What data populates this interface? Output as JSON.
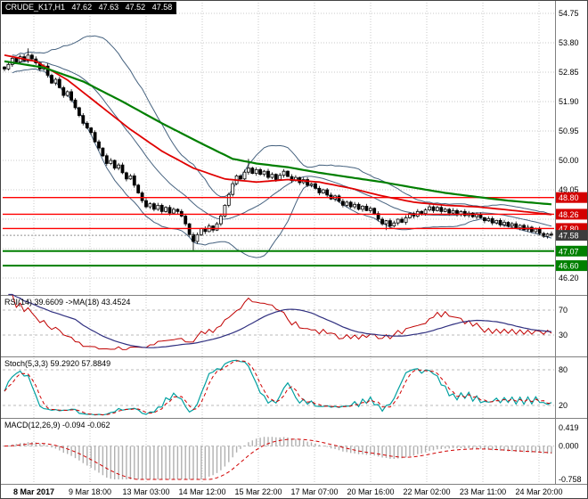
{
  "title_bar": {
    "symbol_timeframe": "CRUDE_K17,H1",
    "open": "47.62",
    "high": "47.63",
    "low": "47.52",
    "close": "47.58"
  },
  "chart_data": {
    "type": "candlestick",
    "symbol": "CRUDE_K17",
    "timeframe": "H1",
    "grid_color": "#c8c8c8",
    "x_labels": [
      "8 Mar 2017",
      "9 Mar 18:00",
      "13 Mar 03:00",
      "14 Mar 12:00",
      "15 Mar 22:00",
      "17 Mar 07:00",
      "20 Mar 16:00",
      "22 Mar 02:00",
      "23 Mar 11:00",
      "24 Mar 20:00"
    ],
    "price_axis": {
      "grid_prices": [
        54.75,
        53.8,
        52.85,
        51.9,
        50.95,
        50.0,
        49.05,
        48.1,
        47.15,
        46.2
      ],
      "visible_labels": [
        "54.75",
        "53.80",
        "52.85",
        "51.90",
        "50.95",
        "50.00",
        "49.05",
        "46.20"
      ]
    },
    "closes": [
      52.95,
      53.1,
      53.3,
      53.18,
      53.35,
      53.22,
      53.4,
      53.28,
      53.15,
      52.95,
      53.05,
      52.75,
      52.5,
      52.62,
      52.35,
      52.1,
      52.22,
      51.95,
      51.7,
      51.45,
      51.2,
      51.05,
      50.9,
      50.6,
      50.4,
      50.15,
      49.9,
      50.0,
      49.75,
      49.85,
      49.6,
      49.4,
      49.5,
      49.2,
      48.95,
      48.7,
      48.5,
      48.6,
      48.42,
      48.55,
      48.35,
      48.48,
      48.3,
      48.42,
      48.35,
      48.2,
      47.95,
      47.6,
      47.38,
      47.6,
      47.8,
      47.7,
      47.88,
      47.75,
      47.95,
      48.2,
      48.55,
      48.9,
      49.25,
      49.5,
      49.4,
      49.62,
      49.75,
      49.58,
      49.7,
      49.55,
      49.65,
      49.45,
      49.55,
      49.38,
      49.52,
      49.65,
      49.48,
      49.35,
      49.45,
      49.28,
      49.38,
      49.2,
      49.25,
      49.1,
      48.95,
      49.05,
      48.88,
      48.75,
      48.85,
      48.68,
      48.55,
      48.65,
      48.5,
      48.58,
      48.42,
      48.52,
      48.38,
      48.45,
      48.28,
      48.1,
      47.95,
      48.05,
      47.88,
      47.98,
      48.1,
      48.0,
      48.15,
      48.28,
      48.2,
      48.35,
      48.28,
      48.4,
      48.5,
      48.38,
      48.48,
      48.35,
      48.42,
      48.3,
      48.38,
      48.25,
      48.35,
      48.22,
      48.3,
      48.18,
      48.25,
      48.15,
      48.05,
      48.12,
      47.98,
      48.06,
      47.92,
      48.0,
      47.88,
      47.95,
      47.82,
      47.9,
      47.76,
      47.84,
      47.7,
      47.78,
      47.64,
      47.55,
      47.62,
      47.58
    ],
    "wick_overrides": {
      "6": {
        "h": 53.62
      },
      "48": {
        "l": 47.08
      },
      "62": {
        "h": 50.05
      },
      "97": {
        "l": 47.75
      }
    },
    "level_lines": [
      {
        "price": 48.8,
        "label": "48.80",
        "type": "resistance",
        "line_color": "#ff0000",
        "box_color": "#d40000",
        "width": 1.4
      },
      {
        "price": 48.26,
        "label": "48.26",
        "type": "resistance",
        "line_color": "#ff0000",
        "box_color": "#d40000",
        "width": 1.4
      },
      {
        "price": 47.8,
        "label": "47.80",
        "type": "resistance",
        "line_color": "#ff0000",
        "box_color": "#d40000",
        "width": 1.4
      },
      {
        "price": 47.07,
        "label": "47.07",
        "type": "support",
        "line_color": "#007f00",
        "box_color": "#008000",
        "width": 2
      },
      {
        "price": 46.6,
        "label": "46.60",
        "type": "support",
        "line_color": "#007f00",
        "box_color": "#008000",
        "width": 2
      }
    ],
    "current_price": {
      "value": 47.58,
      "label": "47.58",
      "box_color": "#3c3c3c"
    },
    "overlays": {
      "ma_red": {
        "color": "#e00000",
        "anchors": [
          [
            0,
            53.4
          ],
          [
            8,
            53.2
          ],
          [
            16,
            52.6
          ],
          [
            24,
            51.8
          ],
          [
            32,
            51.0
          ],
          [
            40,
            50.3
          ],
          [
            48,
            49.75
          ],
          [
            56,
            49.4
          ],
          [
            64,
            49.3
          ],
          [
            72,
            49.38
          ],
          [
            80,
            49.3
          ],
          [
            88,
            49.1
          ],
          [
            96,
            48.85
          ],
          [
            104,
            48.65
          ],
          [
            112,
            48.55
          ],
          [
            120,
            48.5
          ],
          [
            128,
            48.4
          ],
          [
            139,
            48.25
          ]
        ]
      },
      "ma_green": {
        "color": "#007f00",
        "anchors": [
          [
            0,
            53.2
          ],
          [
            10,
            53.0
          ],
          [
            20,
            52.55
          ],
          [
            30,
            51.9
          ],
          [
            40,
            51.2
          ],
          [
            50,
            50.55
          ],
          [
            58,
            50.05
          ],
          [
            64,
            49.9
          ],
          [
            72,
            49.78
          ],
          [
            80,
            49.6
          ],
          [
            88,
            49.45
          ],
          [
            96,
            49.3
          ],
          [
            104,
            49.12
          ],
          [
            112,
            48.95
          ],
          [
            120,
            48.82
          ],
          [
            128,
            48.7
          ],
          [
            139,
            48.58
          ]
        ]
      },
      "bollinger": {
        "period": 20,
        "deviation": 2,
        "color": "#46627f"
      }
    },
    "indicators": {
      "rsi": {
        "label": "RSI(14) 39.6609 ->MA(18) 43.4524",
        "period": 14,
        "ma_period": 18,
        "current": 39.6609,
        "ma_current": 43.4524,
        "levels": [
          70,
          30
        ],
        "level_labels": [
          "70",
          "30"
        ],
        "color": "#c00000",
        "ma_color": "#303080"
      },
      "stoch": {
        "label": "Stoch(5,3,3) 59.2920 57.8849",
        "k": 5,
        "slowing": 3,
        "d": 3,
        "current_k": 59.292,
        "current_d": 57.8849,
        "levels": [
          80,
          20
        ],
        "level_labels": [
          "80",
          "20"
        ],
        "k_color": "#00a0a0",
        "d_color": "#d00000"
      },
      "macd": {
        "label": "MACD(12,26,9) -0.094 -0.062",
        "fast": 12,
        "slow": 26,
        "signal": 9,
        "current": -0.094,
        "current_signal": -0.062,
        "scale_labels": [
          "0.419",
          "0.000",
          "-0.758"
        ],
        "scale_values": [
          0.419,
          0,
          -0.758
        ],
        "hist_color": "#b0b0b0",
        "signal_color": "#d00000"
      }
    }
  }
}
